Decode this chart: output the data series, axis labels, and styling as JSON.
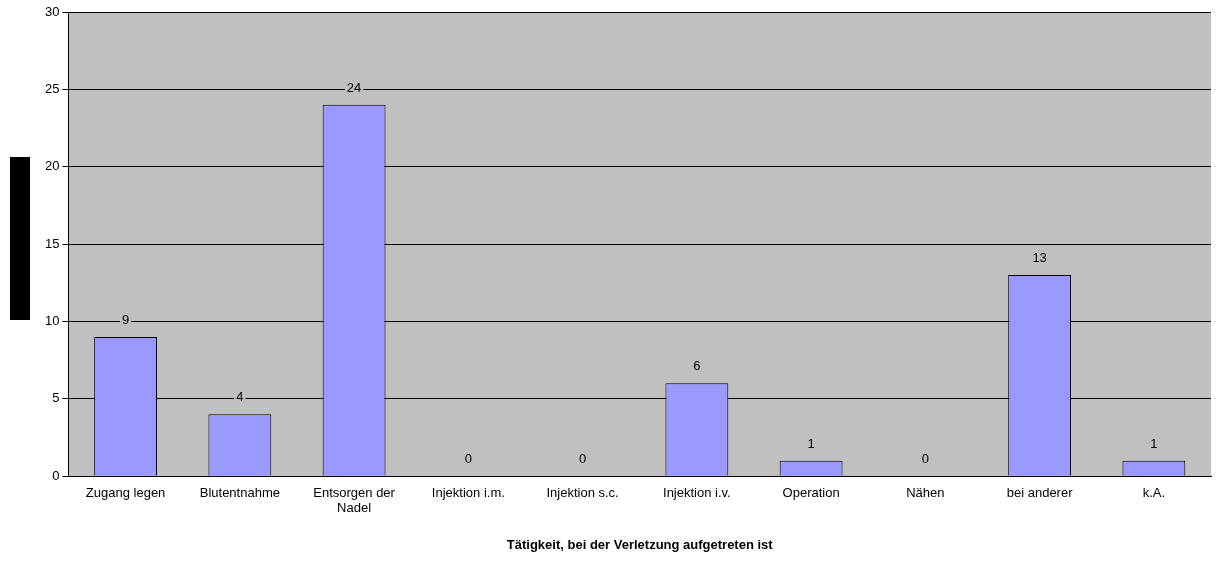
{
  "chart_data": {
    "type": "bar",
    "xlabel": "Tätigkeit, bei der Verletzung aufgetreten ist",
    "categories": [
      "Zugang legen",
      "Blutentnahme",
      "Entsorgen der Nadel",
      "Injektion i.m.",
      "Injektion s.c.",
      "Injektion i.v.",
      "Operation",
      "Nähen",
      "bei anderer",
      "k.A."
    ],
    "values": [
      9,
      4,
      24,
      0,
      0,
      6,
      1,
      0,
      13,
      1
    ],
    "color": "#9999ff",
    "ylim": [
      0,
      30
    ],
    "yticks": [
      0,
      5,
      10,
      15,
      20,
      25,
      30
    ],
    "grid": "y",
    "data_labels": true,
    "legend": false
  }
}
